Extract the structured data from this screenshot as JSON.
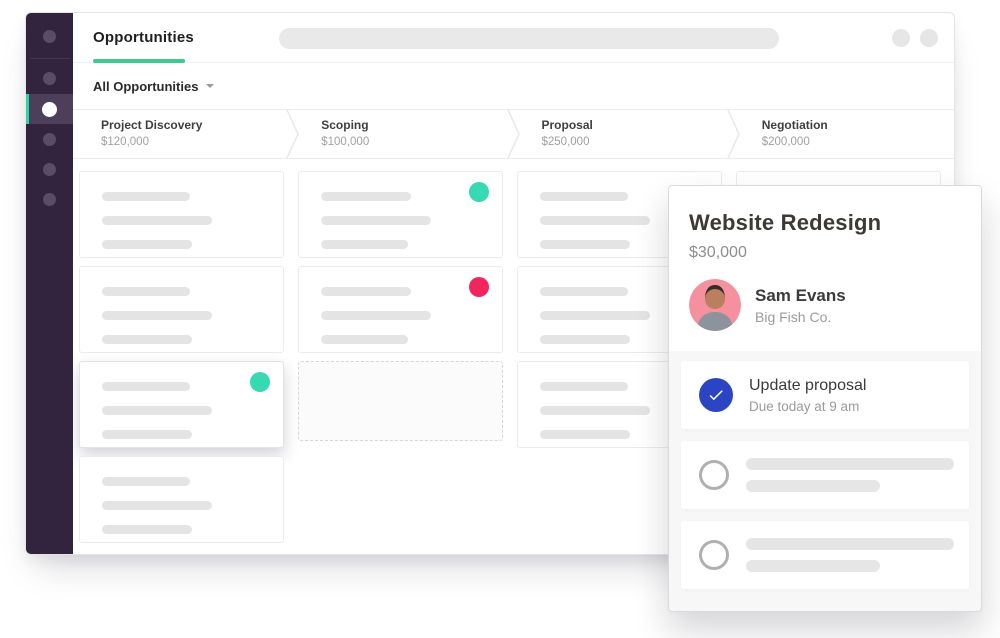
{
  "colors": {
    "teal": "#36d9b2",
    "pink": "#f2255e",
    "blue": "#2b44c4",
    "green_underline": "#3dcb8d",
    "sidebar_bg": "#32243e",
    "sidebar_accent": "#2fd6a4",
    "avatar_bg": "#f5909f"
  },
  "window": {
    "header": {
      "title": "Opportunities"
    },
    "filter": {
      "label": "All Opportunities"
    }
  },
  "sidebar": {
    "items": [
      {
        "type": "dot"
      },
      {
        "type": "divider"
      },
      {
        "type": "dot"
      },
      {
        "type": "dot",
        "active": true
      },
      {
        "type": "dot"
      },
      {
        "type": "dot"
      },
      {
        "type": "dot"
      }
    ]
  },
  "stages": [
    {
      "name": "Project Discovery",
      "amount": "$120,000"
    },
    {
      "name": "Scoping",
      "amount": "$100,000"
    },
    {
      "name": "Proposal",
      "amount": "$250,000"
    },
    {
      "name": "Negotiation",
      "amount": "$200,000"
    }
  ],
  "board": {
    "columns": [
      {
        "stage": "project-discovery",
        "items": [
          {
            "type": "card",
            "lines": [
              88,
              110,
              90
            ]
          },
          {
            "type": "card",
            "lines": [
              88,
              110,
              90
            ]
          },
          {
            "type": "card",
            "lines": [
              88,
              110,
              90
            ],
            "dot": "teal",
            "elevated": true
          },
          {
            "type": "card",
            "lines": [
              88,
              110,
              90
            ]
          }
        ]
      },
      {
        "stage": "scoping",
        "items": [
          {
            "type": "card",
            "lines": [
              90,
              110,
              87
            ],
            "dot": "teal"
          },
          {
            "type": "card",
            "lines": [
              90,
              110,
              87
            ],
            "dot": "pink"
          },
          {
            "type": "dropzone"
          }
        ]
      },
      {
        "stage": "proposal",
        "items": [
          {
            "type": "card",
            "lines": [
              88,
              110,
              90
            ]
          },
          {
            "type": "card",
            "lines": [
              88,
              110,
              90
            ]
          },
          {
            "type": "card",
            "lines": [
              88,
              110,
              90
            ]
          }
        ]
      },
      {
        "stage": "negotiation",
        "items": [
          {
            "type": "card",
            "lines": [
              88,
              110,
              90
            ]
          }
        ]
      }
    ]
  },
  "panel": {
    "title": "Website Redesign",
    "amount": "$30,000",
    "contact": {
      "name": "Sam Evans",
      "company": "Big Fish Co."
    },
    "tasks": [
      {
        "type": "done",
        "title": "Update proposal",
        "due": "Due today at 9 am"
      },
      {
        "type": "placeholder",
        "lines": [
          208,
          134
        ]
      },
      {
        "type": "placeholder",
        "lines": [
          208,
          134
        ]
      }
    ]
  }
}
